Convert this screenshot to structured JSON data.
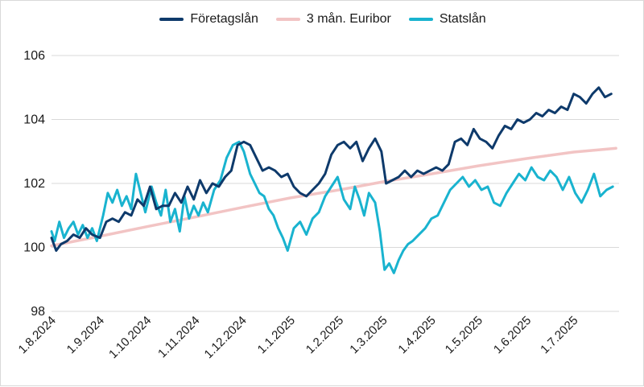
{
  "chart_data": {
    "type": "line",
    "title": "",
    "xlabel": "",
    "ylabel": "",
    "ylim": [
      98,
      106
    ],
    "yticks": [
      98,
      100,
      102,
      104,
      106
    ],
    "grid": "horizontal",
    "legend_position": "top",
    "xticks": [
      "1.8.2024",
      "1.9.2024",
      "1.10.2024",
      "1.11.2024",
      "1.12.2024",
      "1.1.2025",
      "1.2.2025",
      "1.3.2025",
      "1.4.2025",
      "1.5.2025",
      "1.6.2025",
      "1.7.2025"
    ],
    "series": [
      {
        "name": "Företagslån",
        "color": "#0e3a6b",
        "points": [
          [
            "2024-08-01",
            100.3
          ],
          [
            "2024-08-04",
            99.9
          ],
          [
            "2024-08-07",
            100.1
          ],
          [
            "2024-08-11",
            100.2
          ],
          [
            "2024-08-15",
            100.4
          ],
          [
            "2024-08-19",
            100.3
          ],
          [
            "2024-08-23",
            100.6
          ],
          [
            "2024-08-27",
            100.4
          ],
          [
            "2024-09-01",
            100.3
          ],
          [
            "2024-09-05",
            100.8
          ],
          [
            "2024-09-09",
            100.9
          ],
          [
            "2024-09-13",
            100.8
          ],
          [
            "2024-09-17",
            101.1
          ],
          [
            "2024-09-21",
            101.0
          ],
          [
            "2024-09-25",
            101.5
          ],
          [
            "2024-09-29",
            101.3
          ],
          [
            "2024-10-03",
            101.9
          ],
          [
            "2024-10-07",
            101.2
          ],
          [
            "2024-10-11",
            101.3
          ],
          [
            "2024-10-15",
            101.3
          ],
          [
            "2024-10-19",
            101.7
          ],
          [
            "2024-10-23",
            101.4
          ],
          [
            "2024-10-27",
            101.9
          ],
          [
            "2024-10-31",
            101.5
          ],
          [
            "2024-11-04",
            102.1
          ],
          [
            "2024-11-08",
            101.7
          ],
          [
            "2024-11-12",
            102.0
          ],
          [
            "2024-11-16",
            101.9
          ],
          [
            "2024-11-20",
            102.2
          ],
          [
            "2024-11-24",
            102.4
          ],
          [
            "2024-11-28",
            103.2
          ],
          [
            "2024-12-02",
            103.3
          ],
          [
            "2024-12-06",
            103.2
          ],
          [
            "2024-12-10",
            102.8
          ],
          [
            "2024-12-14",
            102.4
          ],
          [
            "2024-12-18",
            102.5
          ],
          [
            "2024-12-22",
            102.4
          ],
          [
            "2024-12-26",
            102.2
          ],
          [
            "2024-12-30",
            102.3
          ],
          [
            "2025-01-03",
            101.9
          ],
          [
            "2025-01-07",
            101.7
          ],
          [
            "2025-01-11",
            101.6
          ],
          [
            "2025-01-15",
            101.8
          ],
          [
            "2025-01-19",
            102.0
          ],
          [
            "2025-01-23",
            102.3
          ],
          [
            "2025-01-27",
            102.9
          ],
          [
            "2025-01-31",
            103.2
          ],
          [
            "2025-02-04",
            103.3
          ],
          [
            "2025-02-08",
            103.1
          ],
          [
            "2025-02-12",
            103.3
          ],
          [
            "2025-02-16",
            102.7
          ],
          [
            "2025-02-20",
            103.1
          ],
          [
            "2025-02-24",
            103.4
          ],
          [
            "2025-02-28",
            103.0
          ],
          [
            "2025-03-03",
            102.0
          ],
          [
            "2025-03-07",
            102.1
          ],
          [
            "2025-03-11",
            102.2
          ],
          [
            "2025-03-15",
            102.4
          ],
          [
            "2025-03-19",
            102.2
          ],
          [
            "2025-03-23",
            102.4
          ],
          [
            "2025-03-27",
            102.3
          ],
          [
            "2025-03-31",
            102.4
          ],
          [
            "2025-04-04",
            102.5
          ],
          [
            "2025-04-08",
            102.4
          ],
          [
            "2025-04-12",
            102.6
          ],
          [
            "2025-04-16",
            103.3
          ],
          [
            "2025-04-20",
            103.4
          ],
          [
            "2025-04-24",
            103.2
          ],
          [
            "2025-04-28",
            103.7
          ],
          [
            "2025-05-02",
            103.4
          ],
          [
            "2025-05-06",
            103.3
          ],
          [
            "2025-05-10",
            103.1
          ],
          [
            "2025-05-14",
            103.5
          ],
          [
            "2025-05-18",
            103.8
          ],
          [
            "2025-05-22",
            103.7
          ],
          [
            "2025-05-26",
            104.0
          ],
          [
            "2025-05-30",
            103.9
          ],
          [
            "2025-06-03",
            104.0
          ],
          [
            "2025-06-07",
            104.2
          ],
          [
            "2025-06-11",
            104.1
          ],
          [
            "2025-06-15",
            104.3
          ],
          [
            "2025-06-19",
            104.2
          ],
          [
            "2025-06-23",
            104.4
          ],
          [
            "2025-06-27",
            104.3
          ],
          [
            "2025-07-01",
            104.8
          ],
          [
            "2025-07-05",
            104.7
          ],
          [
            "2025-07-09",
            104.5
          ],
          [
            "2025-07-13",
            104.8
          ],
          [
            "2025-07-17",
            105.0
          ],
          [
            "2025-07-21",
            104.7
          ],
          [
            "2025-07-25",
            104.8
          ]
        ]
      },
      {
        "name": "3 mån. Euribor",
        "color": "#f2c4c4",
        "points": [
          [
            "2024-08-01",
            100.05
          ],
          [
            "2024-09-01",
            100.35
          ],
          [
            "2024-10-01",
            100.65
          ],
          [
            "2024-11-01",
            100.95
          ],
          [
            "2024-12-01",
            101.25
          ],
          [
            "2025-01-01",
            101.55
          ],
          [
            "2025-02-01",
            101.8
          ],
          [
            "2025-03-01",
            102.05
          ],
          [
            "2025-04-01",
            102.3
          ],
          [
            "2025-05-01",
            102.55
          ],
          [
            "2025-06-01",
            102.78
          ],
          [
            "2025-07-01",
            102.98
          ],
          [
            "2025-07-28",
            103.1
          ]
        ]
      },
      {
        "name": "Statslån",
        "color": "#19b3cf",
        "points": [
          [
            "2024-08-01",
            100.5
          ],
          [
            "2024-08-03",
            100.2
          ],
          [
            "2024-08-06",
            100.8
          ],
          [
            "2024-08-09",
            100.3
          ],
          [
            "2024-08-12",
            100.6
          ],
          [
            "2024-08-15",
            100.8
          ],
          [
            "2024-08-18",
            100.4
          ],
          [
            "2024-08-21",
            100.7
          ],
          [
            "2024-08-24",
            100.3
          ],
          [
            "2024-08-27",
            100.6
          ],
          [
            "2024-08-30",
            100.2
          ],
          [
            "2024-09-03",
            101.0
          ],
          [
            "2024-09-06",
            101.7
          ],
          [
            "2024-09-09",
            101.4
          ],
          [
            "2024-09-12",
            101.8
          ],
          [
            "2024-09-15",
            101.3
          ],
          [
            "2024-09-18",
            101.6
          ],
          [
            "2024-09-21",
            101.2
          ],
          [
            "2024-09-24",
            102.3
          ],
          [
            "2024-09-27",
            101.7
          ],
          [
            "2024-09-30",
            101.1
          ],
          [
            "2024-10-04",
            101.9
          ],
          [
            "2024-10-07",
            101.4
          ],
          [
            "2024-10-10",
            101.0
          ],
          [
            "2024-10-13",
            101.8
          ],
          [
            "2024-10-16",
            100.8
          ],
          [
            "2024-10-19",
            101.2
          ],
          [
            "2024-10-22",
            100.5
          ],
          [
            "2024-10-25",
            101.6
          ],
          [
            "2024-10-28",
            100.9
          ],
          [
            "2024-10-31",
            101.3
          ],
          [
            "2024-11-03",
            101.0
          ],
          [
            "2024-11-06",
            101.4
          ],
          [
            "2024-11-09",
            101.1
          ],
          [
            "2024-11-13",
            101.8
          ],
          [
            "2024-11-17",
            102.1
          ],
          [
            "2024-11-21",
            102.8
          ],
          [
            "2024-11-25",
            103.2
          ],
          [
            "2024-11-29",
            103.3
          ],
          [
            "2024-12-02",
            103.0
          ],
          [
            "2024-12-06",
            102.3
          ],
          [
            "2024-12-09",
            102.0
          ],
          [
            "2024-12-12",
            101.7
          ],
          [
            "2024-12-15",
            101.6
          ],
          [
            "2024-12-18",
            101.2
          ],
          [
            "2024-12-21",
            101.0
          ],
          [
            "2024-12-24",
            100.6
          ],
          [
            "2024-12-27",
            100.3
          ],
          [
            "2024-12-30",
            99.9
          ],
          [
            "2025-01-03",
            100.6
          ],
          [
            "2025-01-07",
            100.8
          ],
          [
            "2025-01-11",
            100.4
          ],
          [
            "2025-01-15",
            100.9
          ],
          [
            "2025-01-19",
            101.1
          ],
          [
            "2025-01-23",
            101.6
          ],
          [
            "2025-01-27",
            101.9
          ],
          [
            "2025-01-31",
            102.2
          ],
          [
            "2025-02-04",
            101.5
          ],
          [
            "2025-02-08",
            101.2
          ],
          [
            "2025-02-11",
            101.9
          ],
          [
            "2025-02-14",
            101.5
          ],
          [
            "2025-02-17",
            101.0
          ],
          [
            "2025-02-20",
            101.7
          ],
          [
            "2025-02-24",
            101.4
          ],
          [
            "2025-02-27",
            100.5
          ],
          [
            "2025-03-02",
            99.3
          ],
          [
            "2025-03-05",
            99.5
          ],
          [
            "2025-03-08",
            99.2
          ],
          [
            "2025-03-11",
            99.6
          ],
          [
            "2025-03-14",
            99.9
          ],
          [
            "2025-03-17",
            100.1
          ],
          [
            "2025-03-20",
            100.2
          ],
          [
            "2025-03-24",
            100.4
          ],
          [
            "2025-03-28",
            100.6
          ],
          [
            "2025-04-01",
            100.9
          ],
          [
            "2025-04-05",
            101.0
          ],
          [
            "2025-04-09",
            101.4
          ],
          [
            "2025-04-13",
            101.8
          ],
          [
            "2025-04-17",
            102.0
          ],
          [
            "2025-04-21",
            102.2
          ],
          [
            "2025-04-25",
            101.9
          ],
          [
            "2025-04-29",
            102.1
          ],
          [
            "2025-05-03",
            101.8
          ],
          [
            "2025-05-07",
            101.9
          ],
          [
            "2025-05-11",
            101.4
          ],
          [
            "2025-05-15",
            101.3
          ],
          [
            "2025-05-19",
            101.7
          ],
          [
            "2025-05-23",
            102.0
          ],
          [
            "2025-05-27",
            102.3
          ],
          [
            "2025-05-31",
            102.1
          ],
          [
            "2025-06-04",
            102.5
          ],
          [
            "2025-06-08",
            102.2
          ],
          [
            "2025-06-12",
            102.1
          ],
          [
            "2025-06-16",
            102.4
          ],
          [
            "2025-06-20",
            102.2
          ],
          [
            "2025-06-24",
            101.8
          ],
          [
            "2025-06-28",
            102.2
          ],
          [
            "2025-07-02",
            101.7
          ],
          [
            "2025-07-06",
            101.4
          ],
          [
            "2025-07-10",
            101.8
          ],
          [
            "2025-07-14",
            102.3
          ],
          [
            "2025-07-18",
            101.6
          ],
          [
            "2025-07-22",
            101.8
          ],
          [
            "2025-07-26",
            101.9
          ]
        ]
      }
    ]
  }
}
